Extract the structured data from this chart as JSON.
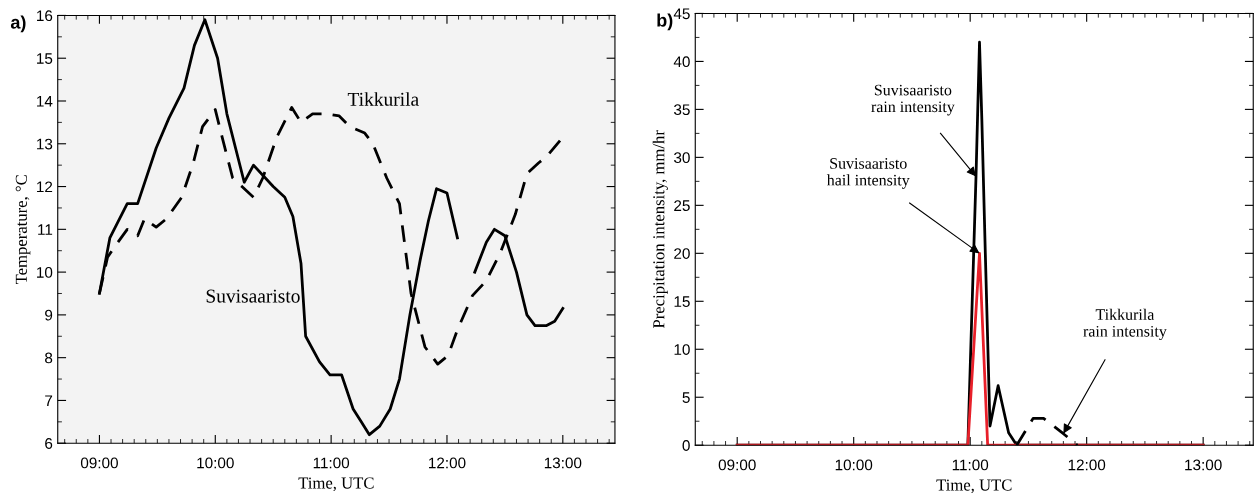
{
  "chart_data": [
    {
      "type": "line",
      "xlabel": "Time, UTC",
      "ylabel": "Temperature, °C",
      "xlim": [
        8.64,
        13.45
      ],
      "ylim": [
        6,
        16
      ],
      "xticks": [
        {
          "value": 9,
          "label": "09:00"
        },
        {
          "value": 10,
          "label": "10:00"
        },
        {
          "value": 11,
          "label": "11:00"
        },
        {
          "value": 12,
          "label": "12:00"
        },
        {
          "value": 13,
          "label": "13:00"
        }
      ],
      "yticks": [
        6,
        7,
        8,
        9,
        10,
        11,
        12,
        13,
        14,
        15,
        16
      ],
      "grid": false,
      "legend": false,
      "marker": "none",
      "annotations": [
        "a)"
      ],
      "series": [
        {
          "name": "Suvisaaristo",
          "color": "#000000",
          "line_style": "solid",
          "x": [
            9.0,
            9.09,
            9.24,
            9.33,
            9.49,
            9.6,
            9.73,
            9.82,
            9.91,
            10.02,
            10.1,
            10.25,
            10.33,
            10.5,
            10.6,
            10.67,
            10.74,
            10.78,
            10.9,
            10.99,
            11.09,
            11.19,
            11.26,
            11.33,
            11.42,
            11.51,
            11.59,
            11.68,
            11.77,
            11.84,
            11.91,
            12.0,
            12.09,
            12.16,
            12.24,
            12.34,
            12.41,
            12.5,
            12.6,
            12.69,
            12.76,
            12.86,
            12.93,
            13.0
          ],
          "values": [
            9.5,
            10.8,
            11.6,
            11.6,
            12.9,
            13.6,
            14.3,
            15.3,
            15.9,
            15.0,
            13.7,
            12.1,
            12.5,
            12.0,
            11.75,
            11.3,
            10.2,
            8.5,
            7.9,
            7.6,
            7.6,
            6.8,
            6.5,
            6.2,
            6.4,
            6.8,
            7.5,
            9.0,
            10.3,
            11.2,
            11.95,
            11.85,
            10.8,
            null,
            10.0,
            10.7,
            11.0,
            10.85,
            10.0,
            9.0,
            8.75,
            8.75,
            8.85,
            9.15
          ]
        },
        {
          "name": "Tikkurila",
          "color": "#000000",
          "line_style": "dashed",
          "x": [
            9.0,
            9.07,
            9.16,
            9.24,
            9.33,
            9.39,
            9.49,
            9.58,
            9.71,
            9.81,
            9.89,
            10.0,
            10.05,
            10.15,
            10.23,
            10.33,
            10.41,
            10.53,
            10.66,
            10.74,
            10.84,
            10.96,
            11.07,
            11.16,
            11.29,
            11.36,
            11.48,
            11.59,
            11.69,
            11.81,
            11.92,
            12.01,
            12.09,
            12.22,
            12.34,
            12.46,
            12.59,
            12.69,
            12.79,
            12.86,
            13.0
          ],
          "values": [
            9.5,
            10.35,
            10.7,
            11.0,
            10.85,
            11.25,
            11.05,
            11.25,
            11.75,
            12.55,
            13.4,
            13.8,
            13.25,
            12.2,
            12.0,
            11.75,
            12.2,
            13.15,
            13.85,
            13.5,
            13.7,
            13.7,
            13.65,
            13.4,
            13.25,
            13.0,
            12.2,
            11.6,
            9.5,
            8.25,
            7.85,
            8.05,
            8.65,
            9.45,
            9.8,
            10.45,
            11.35,
            12.3,
            12.55,
            12.7,
            13.15
          ]
        }
      ]
    },
    {
      "type": "line",
      "xlabel": "Time, UTC",
      "ylabel": "Precipitation intensity, mm/hr",
      "xlim": [
        8.64,
        13.43
      ],
      "ylim": [
        0,
        45
      ],
      "xticks": [
        {
          "value": 9,
          "label": "09:00"
        },
        {
          "value": 10,
          "label": "10:00"
        },
        {
          "value": 11,
          "label": "11:00"
        },
        {
          "value": 12,
          "label": "12:00"
        },
        {
          "value": 13,
          "label": "13:00"
        }
      ],
      "yticks": [
        0,
        5,
        10,
        15,
        20,
        25,
        30,
        35,
        40,
        45
      ],
      "grid": false,
      "legend": false,
      "marker": "none",
      "annotations": [
        "b)"
      ],
      "series": [
        {
          "name": "Suvisaaristo\nrain intensity",
          "color": "#000000",
          "line_style": "solid",
          "x": [
            9.0,
            10.98,
            11.05,
            11.08,
            11.1,
            11.13,
            11.17,
            11.24,
            11.33,
            11.4,
            13.0
          ],
          "values": [
            0,
            0,
            28,
            42,
            34,
            20,
            2,
            6.2,
            1.3,
            0,
            0
          ]
        },
        {
          "name": "Suvisaaristo\nhail intensity",
          "color": "#e8202a",
          "line_style": "solid",
          "x": [
            9.0,
            10.98,
            11.08,
            11.15,
            13.0
          ],
          "values": [
            0,
            0,
            20,
            0,
            0
          ]
        },
        {
          "name": "Tikkurila\nrain intensity",
          "color": "#000000",
          "line_style": "dashed",
          "x": [
            11.4,
            11.54,
            11.63,
            11.8,
            11.92
          ],
          "values": [
            0,
            2.8,
            2.8,
            1.2,
            0
          ]
        }
      ]
    }
  ]
}
